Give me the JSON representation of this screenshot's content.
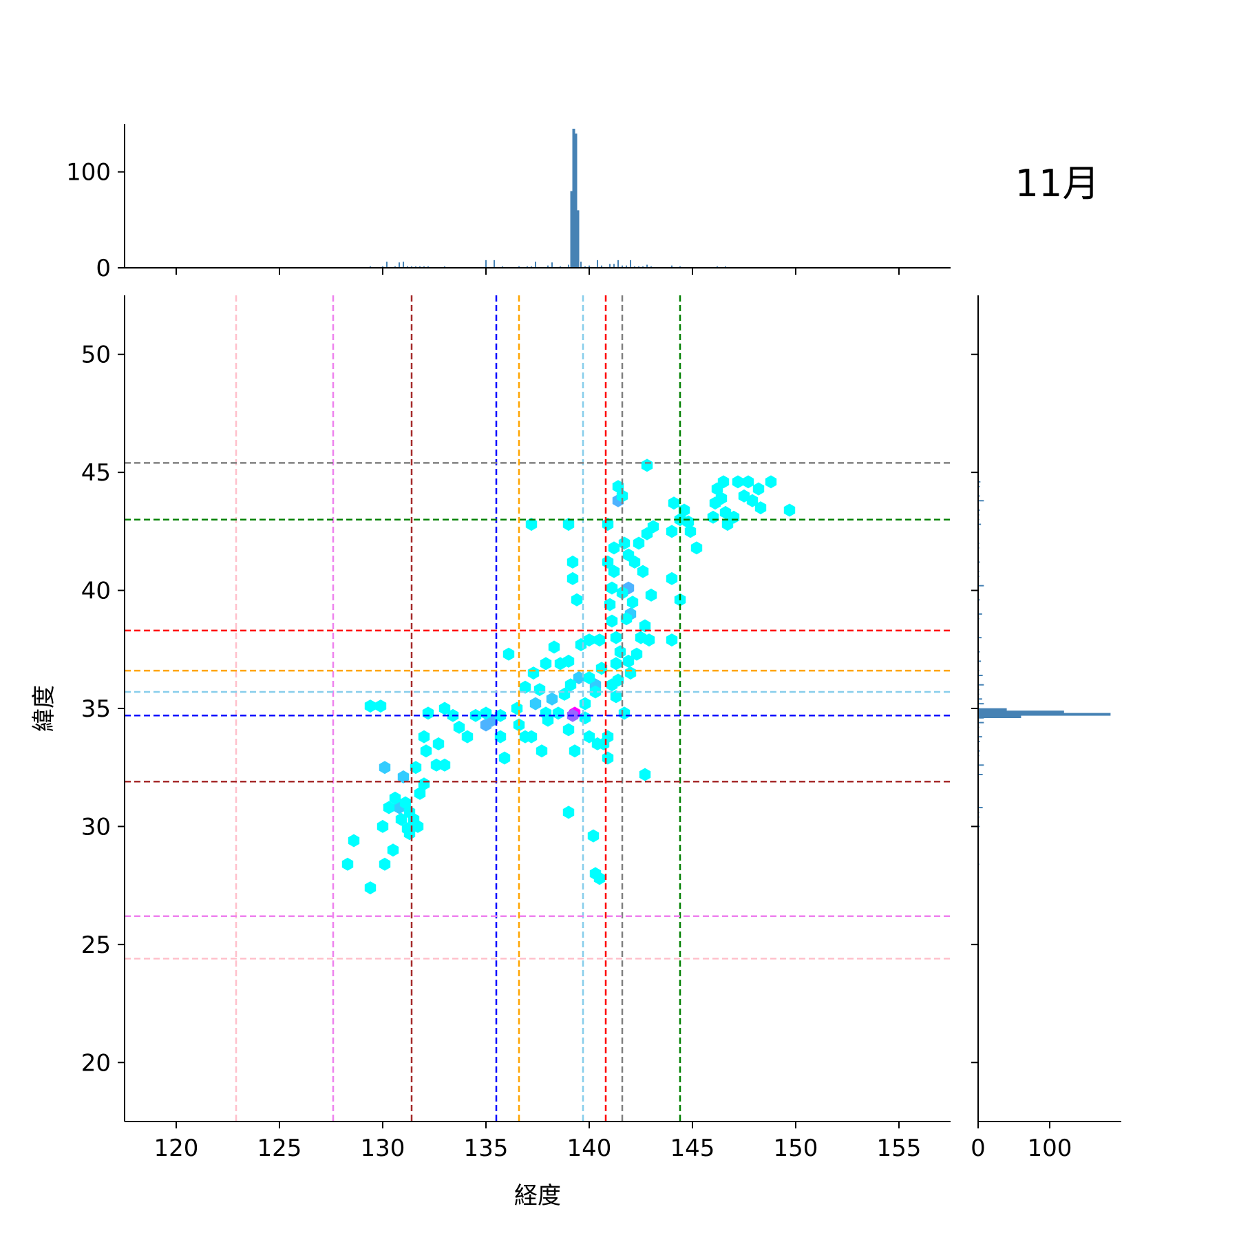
{
  "chart_data": {
    "type": "hexbin",
    "title": "11月",
    "xlabel": "経度",
    "ylabel": "緯度",
    "xlim": [
      117.5,
      157.5
    ],
    "ylim": [
      17.5,
      52.5
    ],
    "xticks": [
      "120",
      "125",
      "130",
      "135",
      "140",
      "145",
      "150",
      "155"
    ],
    "yticks": [
      "20",
      "25",
      "30",
      "35",
      "40",
      "45",
      "50"
    ],
    "top_hist": {
      "yticks": [
        "0",
        "100"
      ],
      "ylim": [
        0,
        150
      ],
      "color": "#4682b4"
    },
    "right_hist": {
      "xticks": [
        "0",
        "100"
      ],
      "xlim": [
        0,
        200
      ],
      "color": "#4682b4"
    },
    "colors": {
      "low": "#00ffff",
      "high": "#ff00ff",
      "hist": "#4682b4"
    },
    "vlines": [
      {
        "x": 122.9,
        "color": "#ffc0cb"
      },
      {
        "x": 127.6,
        "color": "#ee82ee"
      },
      {
        "x": 131.4,
        "color": "#a52a2a"
      },
      {
        "x": 135.5,
        "color": "#0000ff"
      },
      {
        "x": 136.6,
        "color": "#ffa500"
      },
      {
        "x": 139.7,
        "color": "#87ceeb"
      },
      {
        "x": 140.8,
        "color": "#ff0000"
      },
      {
        "x": 141.6,
        "color": "#808080"
      },
      {
        "x": 144.4,
        "color": "#008000"
      }
    ],
    "hlines": [
      {
        "y": 45.4,
        "color": "#808080"
      },
      {
        "y": 43.0,
        "color": "#008000"
      },
      {
        "y": 38.3,
        "color": "#ff0000"
      },
      {
        "y": 36.6,
        "color": "#ffa500"
      },
      {
        "y": 35.7,
        "color": "#87ceeb"
      },
      {
        "y": 34.7,
        "color": "#0000ff"
      },
      {
        "y": 31.9,
        "color": "#a52a2a"
      },
      {
        "y": 26.2,
        "color": "#ee82ee"
      },
      {
        "y": 24.4,
        "color": "#ffc0cb"
      }
    ],
    "points": [
      [
        139.3,
        34.8,
        1.0
      ],
      [
        139.2,
        34.7,
        0.6
      ],
      [
        135.3,
        34.5,
        0.3
      ],
      [
        135.0,
        34.3,
        0.3
      ],
      [
        137.4,
        35.2,
        0.2
      ],
      [
        138.2,
        35.4,
        0.2
      ],
      [
        139.5,
        36.3,
        0.2
      ],
      [
        140.3,
        36.0,
        0.2
      ],
      [
        141.9,
        40.1,
        0.3
      ],
      [
        142.0,
        39.0,
        0.2
      ],
      [
        141.4,
        43.8,
        0.3
      ],
      [
        130.8,
        30.8,
        0.2
      ],
      [
        131.0,
        32.1,
        0.2
      ],
      [
        130.1,
        32.5,
        0.2
      ],
      [
        129.4,
        35.1,
        0.0
      ],
      [
        129.9,
        35.1,
        0.0
      ],
      [
        128.6,
        29.4,
        0.0
      ],
      [
        128.3,
        28.4,
        0.0
      ],
      [
        129.4,
        27.4,
        0.0
      ],
      [
        130.1,
        28.4,
        0.0
      ],
      [
        130.5,
        29.0,
        0.0
      ],
      [
        130.0,
        30.0,
        0.0
      ],
      [
        130.3,
        30.8,
        0.0
      ],
      [
        130.6,
        31.2,
        0.0
      ],
      [
        131.1,
        31.0,
        0.0
      ],
      [
        131.3,
        30.6,
        0.0
      ],
      [
        130.9,
        30.3,
        0.0
      ],
      [
        131.5,
        30.3,
        0.0
      ],
      [
        131.2,
        29.9,
        0.0
      ],
      [
        131.3,
        29.7,
        0.0
      ],
      [
        131.7,
        30.0,
        0.0
      ],
      [
        131.8,
        31.4,
        0.0
      ],
      [
        132.0,
        31.8,
        0.0
      ],
      [
        131.6,
        32.5,
        0.0
      ],
      [
        132.1,
        33.2,
        0.0
      ],
      [
        132.6,
        32.6,
        0.0
      ],
      [
        133.0,
        32.6,
        0.0
      ],
      [
        132.0,
        33.8,
        0.0
      ],
      [
        132.7,
        33.5,
        0.0
      ],
      [
        132.2,
        34.8,
        0.0
      ],
      [
        133.0,
        35.0,
        0.0
      ],
      [
        133.4,
        34.7,
        0.0
      ],
      [
        133.7,
        34.2,
        0.0
      ],
      [
        134.1,
        33.8,
        0.0
      ],
      [
        134.5,
        34.7,
        0.0
      ],
      [
        135.0,
        34.8,
        0.0
      ],
      [
        135.7,
        34.7,
        0.0
      ],
      [
        135.7,
        33.8,
        0.0
      ],
      [
        135.9,
        32.9,
        0.0
      ],
      [
        136.1,
        37.3,
        0.0
      ],
      [
        136.5,
        35.0,
        0.0
      ],
      [
        136.6,
        34.3,
        0.0
      ],
      [
        136.9,
        33.8,
        0.0
      ],
      [
        137.2,
        33.8,
        0.0
      ],
      [
        136.9,
        35.9,
        0.0
      ],
      [
        137.3,
        36.5,
        0.0
      ],
      [
        137.9,
        36.9,
        0.0
      ],
      [
        138.3,
        37.6,
        0.0
      ],
      [
        138.6,
        36.9,
        0.0
      ],
      [
        137.9,
        34.8,
        0.0
      ],
      [
        137.7,
        33.2,
        0.0
      ],
      [
        138.8,
        35.6,
        0.0
      ],
      [
        138.0,
        34.5,
        0.0
      ],
      [
        139.0,
        37.0,
        0.0
      ],
      [
        139.1,
        36.0,
        0.0
      ],
      [
        139.0,
        34.1,
        0.0
      ],
      [
        139.3,
        33.2,
        0.0
      ],
      [
        140.0,
        33.8,
        0.0
      ],
      [
        140.0,
        36.3,
        0.0
      ],
      [
        139.8,
        34.6,
        0.0
      ],
      [
        139.6,
        37.7,
        0.0
      ],
      [
        140.0,
        37.9,
        0.0
      ],
      [
        140.5,
        37.9,
        0.0
      ],
      [
        140.4,
        33.5,
        0.0
      ],
      [
        140.7,
        33.5,
        0.0
      ],
      [
        140.9,
        33.8,
        0.0
      ],
      [
        140.9,
        32.9,
        0.0
      ],
      [
        140.2,
        29.6,
        0.0
      ],
      [
        140.3,
        28.0,
        0.0
      ],
      [
        140.5,
        27.8,
        0.0
      ],
      [
        139.0,
        30.6,
        0.0
      ],
      [
        137.2,
        42.8,
        0.0
      ],
      [
        139.0,
        42.8,
        0.0
      ],
      [
        139.2,
        41.2,
        0.0
      ],
      [
        139.2,
        40.5,
        0.0
      ],
      [
        139.4,
        39.6,
        0.0
      ],
      [
        140.9,
        42.8,
        0.0
      ],
      [
        141.2,
        41.8,
        0.0
      ],
      [
        140.9,
        41.2,
        0.0
      ],
      [
        141.2,
        40.8,
        0.0
      ],
      [
        141.1,
        40.1,
        0.0
      ],
      [
        141.0,
        39.4,
        0.0
      ],
      [
        141.1,
        38.7,
        0.0
      ],
      [
        141.3,
        38.0,
        0.0
      ],
      [
        141.5,
        37.4,
        0.0
      ],
      [
        141.3,
        36.9,
        0.0
      ],
      [
        141.1,
        36.0,
        0.0
      ],
      [
        141.3,
        35.5,
        0.0
      ],
      [
        141.7,
        34.8,
        0.0
      ],
      [
        141.9,
        37.0,
        0.0
      ],
      [
        142.3,
        37.3,
        0.0
      ],
      [
        142.5,
        38.0,
        0.0
      ],
      [
        142.7,
        38.5,
        0.0
      ],
      [
        142.9,
        37.9,
        0.0
      ],
      [
        143.0,
        39.8,
        0.0
      ],
      [
        142.6,
        40.8,
        0.0
      ],
      [
        142.2,
        41.2,
        0.0
      ],
      [
        141.9,
        41.5,
        0.0
      ],
      [
        142.4,
        42.0,
        0.0
      ],
      [
        142.8,
        42.4,
        0.0
      ],
      [
        143.1,
        42.7,
        0.0
      ],
      [
        141.6,
        44.0,
        0.0
      ],
      [
        141.4,
        44.4,
        0.0
      ],
      [
        142.8,
        45.3,
        0.0
      ],
      [
        142.7,
        32.2,
        0.0
      ],
      [
        142.0,
        36.5,
        0.0
      ],
      [
        144.1,
        43.7,
        0.0
      ],
      [
        144.0,
        42.5,
        0.0
      ],
      [
        144.4,
        43.0,
        0.0
      ],
      [
        144.6,
        43.4,
        0.0
      ],
      [
        144.8,
        42.9,
        0.0
      ],
      [
        144.9,
        42.5,
        0.0
      ],
      [
        145.2,
        41.8,
        0.0
      ],
      [
        144.0,
        40.5,
        0.0
      ],
      [
        144.4,
        39.6,
        0.0
      ],
      [
        144.0,
        37.9,
        0.0
      ],
      [
        146.0,
        43.1,
        0.0
      ],
      [
        146.1,
        43.7,
        0.0
      ],
      [
        146.2,
        44.3,
        0.0
      ],
      [
        146.5,
        44.6,
        0.0
      ],
      [
        146.4,
        43.9,
        0.0
      ],
      [
        146.6,
        43.3,
        0.0
      ],
      [
        146.7,
        42.8,
        0.0
      ],
      [
        147.0,
        43.1,
        0.0
      ],
      [
        147.2,
        44.6,
        0.0
      ],
      [
        147.7,
        44.6,
        0.0
      ],
      [
        147.5,
        44.0,
        0.0
      ],
      [
        147.9,
        43.8,
        0.0
      ],
      [
        148.2,
        44.3,
        0.0
      ],
      [
        148.3,
        43.5,
        0.0
      ],
      [
        148.8,
        44.6,
        0.0
      ],
      [
        149.7,
        43.4,
        0.0
      ],
      [
        141.8,
        38.8,
        0.0
      ],
      [
        142.1,
        39.5,
        0.0
      ],
      [
        141.6,
        39.9,
        0.0
      ],
      [
        141.7,
        42.0,
        0.0
      ],
      [
        141.4,
        36.2,
        0.0
      ],
      [
        140.3,
        35.7,
        0.0
      ],
      [
        139.8,
        35.2,
        0.0
      ],
      [
        138.5,
        34.8,
        0.0
      ],
      [
        137.6,
        35.8,
        0.0
      ],
      [
        140.6,
        36.7,
        0.0
      ]
    ]
  }
}
